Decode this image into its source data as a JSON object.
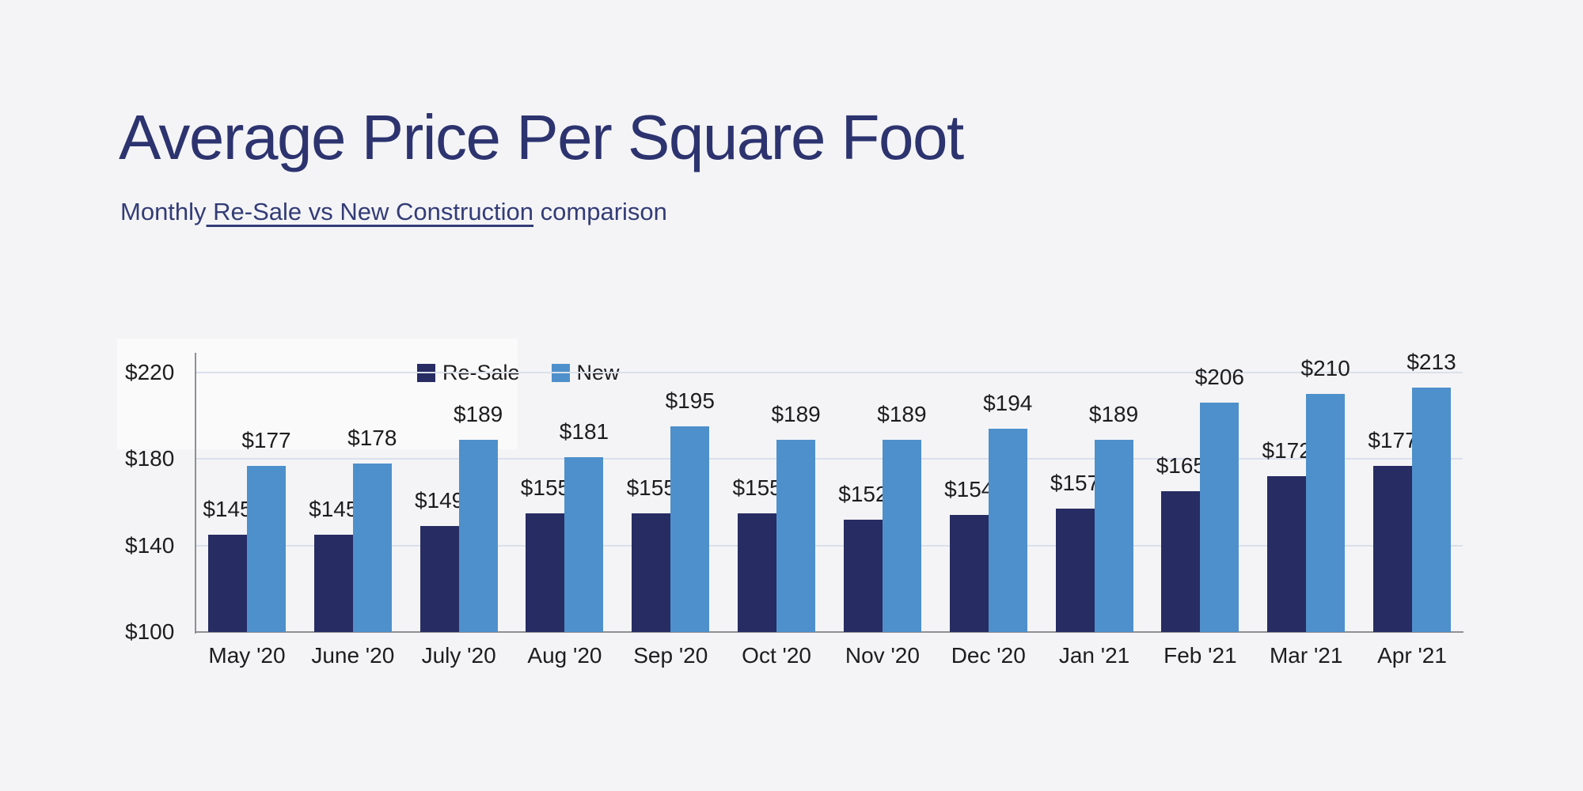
{
  "slide": {
    "title": "Average Price Per Square Foot",
    "subtitle_prefix": "Monthly",
    "subtitle_underlined": " Re-Sale vs New Construction",
    "subtitle_suffix": " comparison"
  },
  "colors": {
    "background": "#f4f4f6",
    "title_navy": "#2c336f",
    "resale_bar": "#272c63",
    "new_bar": "#4e90cb",
    "gridline": "#dae0eb",
    "axis_line": "#8f9094",
    "chart_text": "#1d1d1f"
  },
  "chart_data": {
    "type": "bar",
    "title": "Average Price Per Square Foot",
    "subtitle": "Monthly Re-Sale vs New Construction comparison",
    "categories": [
      "May '20",
      "June '20",
      "July '20",
      "Aug '20",
      "Sep '20",
      "Oct '20",
      "Nov '20",
      "Dec '20",
      "Jan '21",
      "Feb '21",
      "Mar '21",
      "Apr '21"
    ],
    "series": [
      {
        "name": "Re-Sale",
        "color": "#272c63",
        "values": [
          145,
          145,
          149,
          155,
          155,
          155,
          152,
          154,
          157,
          165,
          172,
          177
        ]
      },
      {
        "name": "New",
        "color": "#4e90cb",
        "values": [
          177,
          178,
          189,
          181,
          195,
          189,
          189,
          194,
          189,
          206,
          210,
          213
        ]
      }
    ],
    "value_prefix": "$",
    "xlabel": "",
    "ylabel": "",
    "yticks": [
      220,
      180,
      140,
      100
    ],
    "ytick_labels": [
      "$220",
      "$180",
      "$140",
      "$100"
    ],
    "ylim": [
      100,
      229
    ],
    "grid": true,
    "legend_position": "top-inside"
  }
}
